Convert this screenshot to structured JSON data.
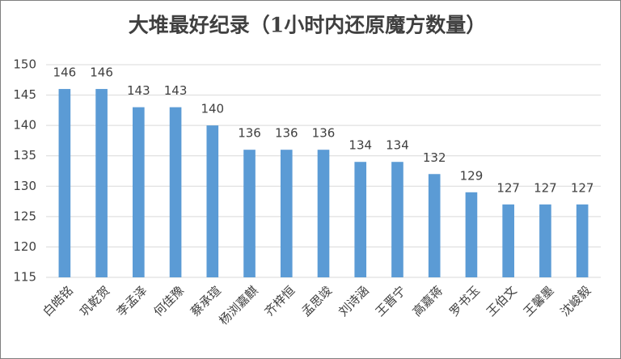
{
  "chart_data": {
    "type": "bar",
    "title": "大堆最好纪录（1小时内还原魔方数量）",
    "categories": [
      "白皓铭",
      "巩乾贺",
      "李孟泽",
      "何佳豫",
      "蔡承瑄",
      "杨浏嘉麒",
      "齐梓恒",
      "孟思竣",
      "刘诗涵",
      "王晋宁",
      "高嘉蒋",
      "罗书玉",
      "王伯文",
      "王馨墨",
      "沈峻毅"
    ],
    "values": [
      146,
      146,
      143,
      143,
      140,
      136,
      136,
      136,
      134,
      134,
      132,
      129,
      127,
      127,
      127
    ],
    "color": "#5b9bd5",
    "ylim": [
      115,
      150
    ],
    "yticks": [
      115,
      120,
      125,
      130,
      135,
      140,
      145,
      150
    ],
    "grid": true
  }
}
